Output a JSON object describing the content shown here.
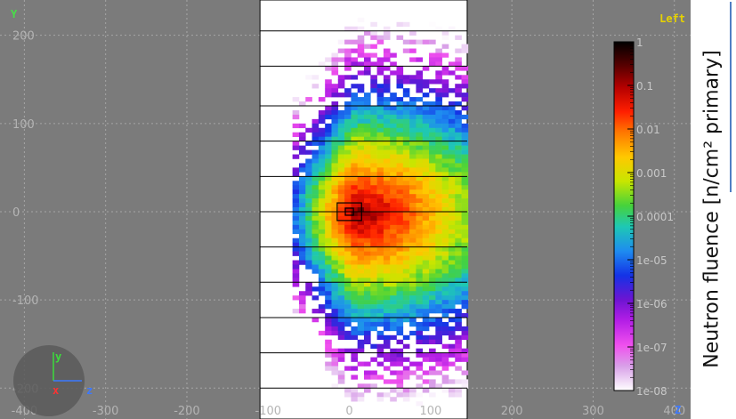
{
  "view": {
    "mode_label": "Left",
    "orientation": {
      "vertical": "Y",
      "horizontal": "Z"
    }
  },
  "chart_data": {
    "type": "heatmap",
    "title": "",
    "xlabel": "Z",
    "ylabel": "Y",
    "xlim": [
      -430,
      420
    ],
    "ylim": [
      -235,
      240
    ],
    "x_ticks": [
      -400,
      -300,
      -200,
      -100,
      0,
      100,
      200,
      300,
      400
    ],
    "x_tick_labels": [
      "-400",
      "-300",
      "-200",
      "-100",
      "0",
      "100",
      "200",
      "300",
      "400"
    ],
    "y_ticks": [
      200,
      100,
      0,
      -100,
      -200
    ],
    "y_tick_labels": [
      "200",
      "100",
      "0",
      "-100",
      "-200"
    ],
    "grid": true,
    "detector_region": {
      "x": [
        -110,
        145
      ],
      "y": [
        -235,
        240
      ]
    },
    "layer_boundaries_y": [
      205,
      165,
      120,
      80,
      40,
      0,
      -40,
      -80,
      -120,
      -160,
      -200
    ],
    "target_box": {
      "x": [
        -15,
        15
      ],
      "y": [
        -10,
        10
      ]
    },
    "colorbar": {
      "label": "Neutron fluence [n/cm² primary]",
      "scale": "log",
      "range": [
        1e-08,
        1
      ],
      "tick_labels": [
        "1",
        "0.1",
        "0.01",
        "0.001",
        "0.0001",
        "1e-05",
        "1e-06",
        "1e-07",
        "1e-08"
      ]
    }
  },
  "gizmo": {
    "y": "y",
    "x": "x",
    "z": "z"
  }
}
